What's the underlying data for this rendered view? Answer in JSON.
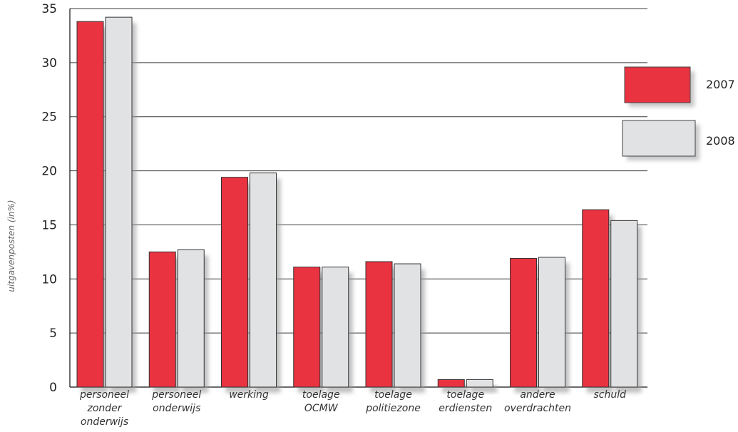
{
  "colors": {
    "series_2007": "#ea3340",
    "series_2008": "#e1e2e4",
    "gridline": "#3a3a3a",
    "shadow": "#9a9a9a"
  },
  "chart_data": {
    "type": "bar",
    "title": "",
    "xlabel": "",
    "ylabel": "uitgavenposten (in%)",
    "ylim": [
      0,
      35
    ],
    "yticks": [
      "0",
      "5",
      "10",
      "15",
      "20",
      "25",
      "30",
      "35"
    ],
    "categories": [
      [
        "personeel",
        "zonder",
        "onderwijs"
      ],
      [
        "personeel",
        "onderwijs"
      ],
      [
        "werking"
      ],
      [
        "toelage",
        "OCMW"
      ],
      [
        "toelage",
        "politiezone"
      ],
      [
        "toelage",
        "erdiensten"
      ],
      [
        "andere",
        "overdrachten"
      ],
      [
        "schuld"
      ]
    ],
    "series": [
      {
        "name": "2007",
        "values": [
          33.8,
          12.5,
          19.4,
          11.1,
          11.6,
          0.7,
          11.9,
          16.4
        ]
      },
      {
        "name": "2008",
        "values": [
          34.2,
          12.7,
          19.8,
          11.1,
          11.4,
          0.7,
          12.0,
          15.4
        ]
      }
    ],
    "grid": true,
    "legend_position": "top-right"
  }
}
